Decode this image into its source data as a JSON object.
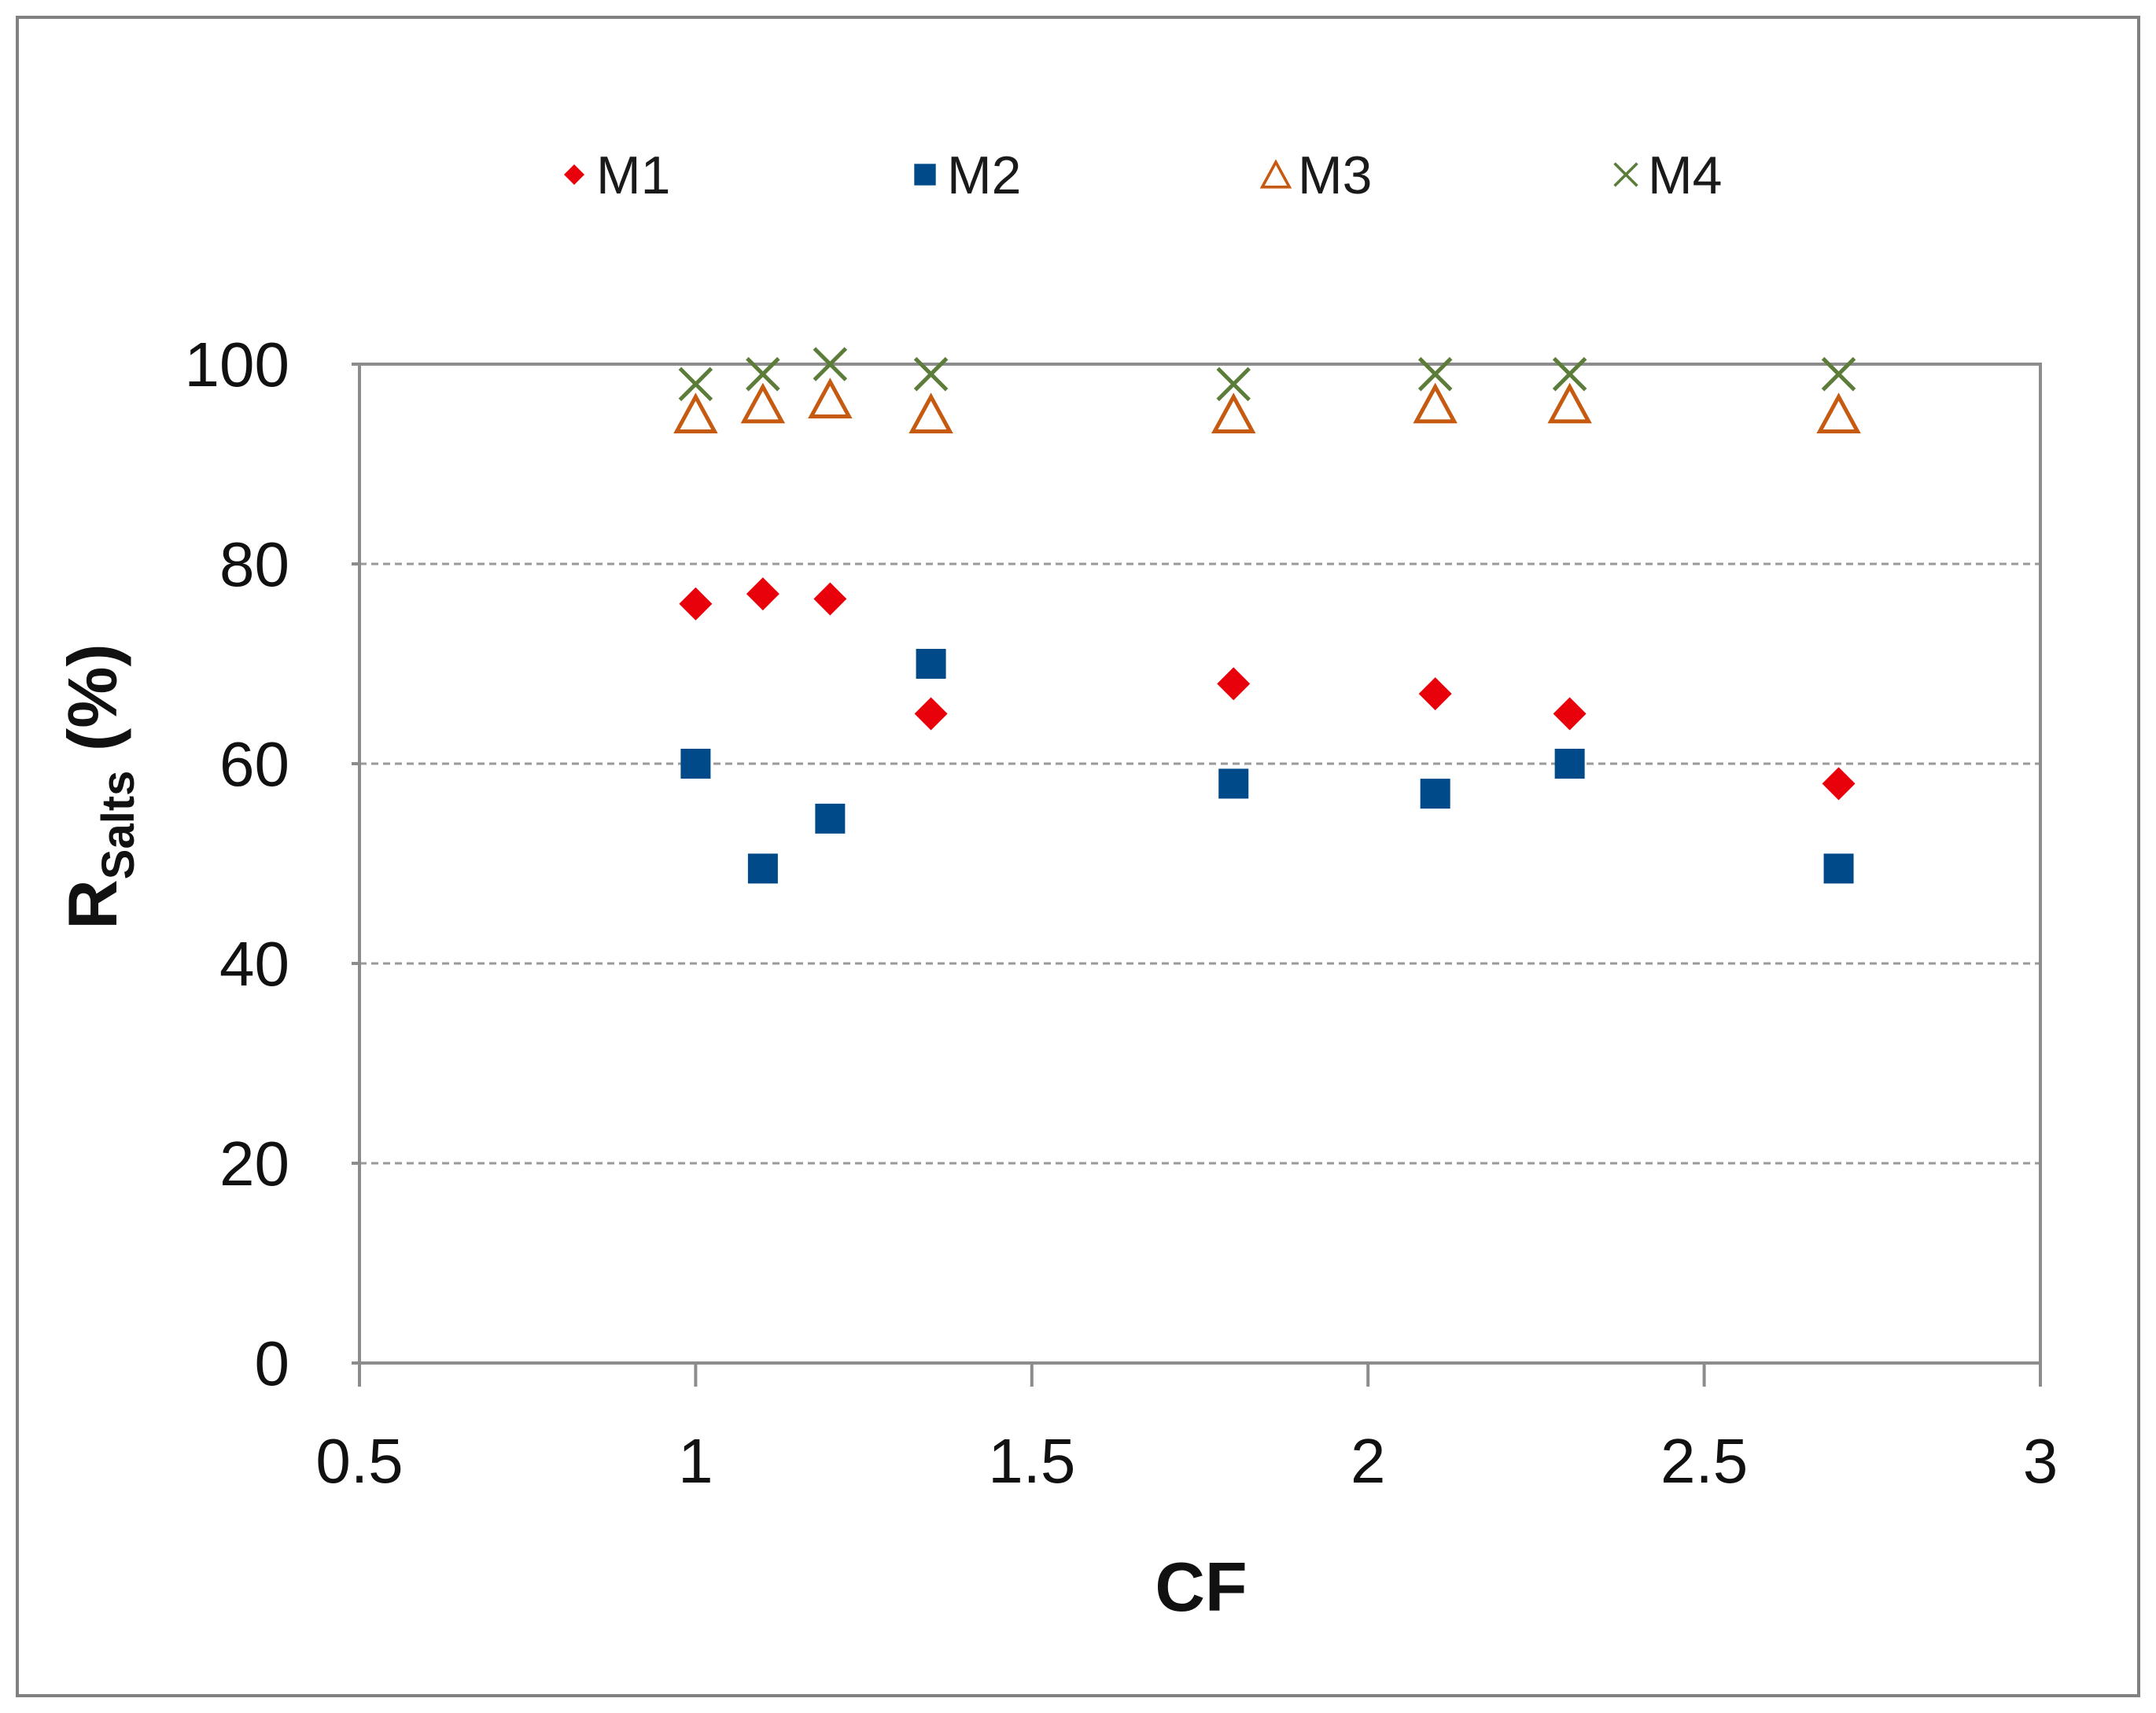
{
  "chart_data": {
    "type": "scatter",
    "title": "",
    "xlabel": "CF",
    "ylabel_main": "R",
    "ylabel_sub": "Salts",
    "ylabel_suffix": " (%)",
    "xlim": [
      0.5,
      3
    ],
    "ylim": [
      0,
      100
    ],
    "x_ticks": [
      0.5,
      1,
      1.5,
      2,
      2.5,
      3
    ],
    "x_tick_labels": [
      "0.5",
      "1",
      "1.5",
      "2",
      "2.5",
      "3"
    ],
    "y_ticks": [
      0,
      20,
      40,
      60,
      80,
      100
    ],
    "y_tick_labels": [
      "0",
      "20",
      "40",
      "60",
      "80",
      "100"
    ],
    "grid": "horizontal dashed",
    "legend_position": "top",
    "series": [
      {
        "name": "M1",
        "marker": "diamond",
        "color": "#e8000b",
        "x": [
          1.0,
          1.1,
          1.2,
          1.35,
          1.8,
          2.1,
          2.3,
          2.7
        ],
        "y": [
          76,
          77,
          76.5,
          65,
          68,
          67,
          65,
          58
        ]
      },
      {
        "name": "M2",
        "marker": "square",
        "color": "#004a8a",
        "x": [
          1.0,
          1.1,
          1.2,
          1.35,
          1.8,
          2.1,
          2.3,
          2.7
        ],
        "y": [
          60,
          49.5,
          54.5,
          70,
          58,
          57,
          60,
          49.5
        ]
      },
      {
        "name": "M3",
        "marker": "triangle",
        "color": "#c65a11",
        "x": [
          1.0,
          1.1,
          1.2,
          1.35,
          1.8,
          2.1,
          2.3,
          2.7
        ],
        "y": [
          95,
          96,
          96.5,
          95,
          95,
          96,
          96,
          95
        ]
      },
      {
        "name": "M4",
        "marker": "x",
        "color": "#5c7d3a",
        "x": [
          1.0,
          1.1,
          1.2,
          1.35,
          1.8,
          2.1,
          2.3,
          2.7
        ],
        "y": [
          98,
          99,
          100,
          99,
          98,
          99,
          99,
          99
        ]
      }
    ]
  }
}
